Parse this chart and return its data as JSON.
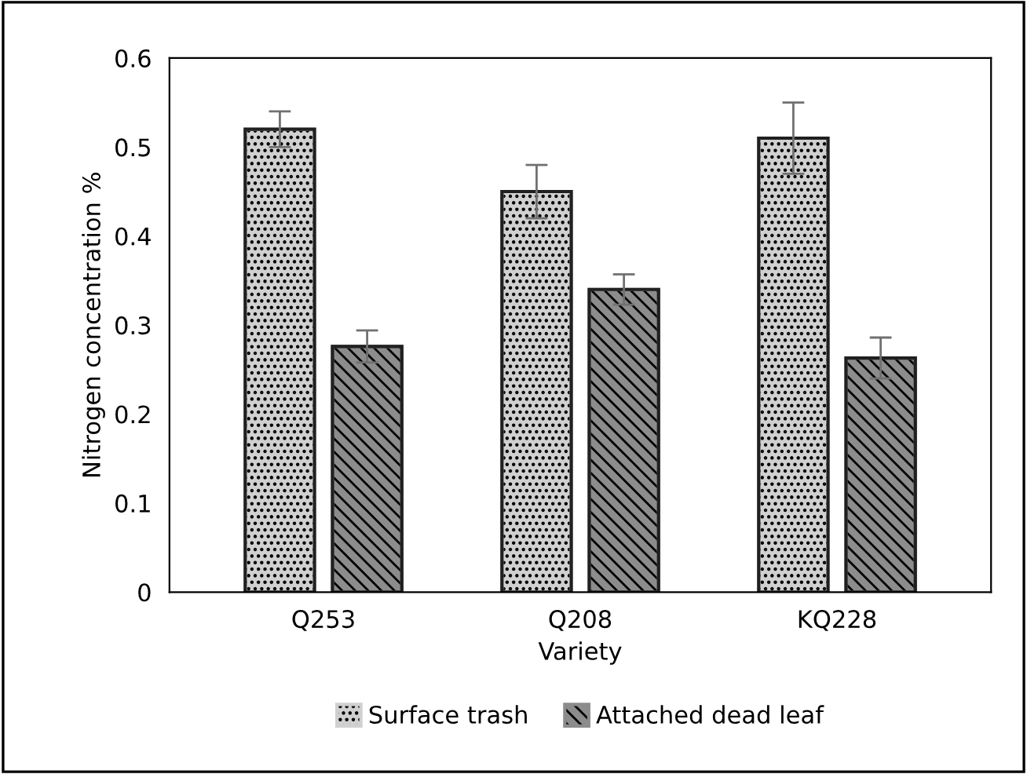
{
  "chart_data": {
    "type": "bar",
    "xlabel": "Variety",
    "ylabel": "Nitrogen concentration %",
    "categories": [
      "Q253",
      "Q208",
      "KQ228"
    ],
    "series": [
      {
        "name": "Surface trash",
        "color": "#d0d0d0",
        "values": [
          0.52,
          0.45,
          0.51
        ],
        "errors": [
          0.02,
          0.03,
          0.04
        ]
      },
      {
        "name": "Attached dead leaf",
        "color": "#8c8c8c",
        "values": [
          0.276,
          0.34,
          0.263
        ],
        "errors": [
          0.018,
          0.017,
          0.023
        ]
      }
    ],
    "ylim": [
      0,
      0.6
    ],
    "yticks": [
      {
        "value": 0,
        "label": "0"
      },
      0.1,
      0.2,
      0.3,
      0.4,
      0.5,
      0.6
    ],
    "grid": false,
    "legend": "bottom"
  }
}
